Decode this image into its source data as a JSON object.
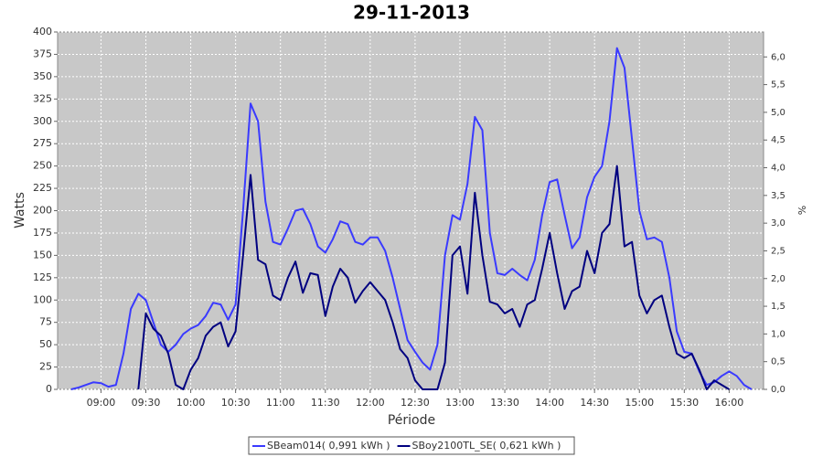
{
  "chart_data": {
    "type": "line",
    "title": "29-11-2013",
    "xlabel": "Période",
    "ylabel": "Watts",
    "y2label": "%",
    "x": [
      "08:40",
      "08:45",
      "08:50",
      "08:55",
      "09:00",
      "09:05",
      "09:10",
      "09:15",
      "09:20",
      "09:25",
      "09:30",
      "09:35",
      "09:40",
      "09:45",
      "09:50",
      "09:55",
      "10:00",
      "10:05",
      "10:10",
      "10:15",
      "10:20",
      "10:25",
      "10:30",
      "10:35",
      "10:40",
      "10:45",
      "10:50",
      "10:55",
      "11:00",
      "11:05",
      "11:10",
      "11:15",
      "11:20",
      "11:25",
      "11:30",
      "11:35",
      "11:40",
      "11:45",
      "11:50",
      "11:55",
      "12:00",
      "12:05",
      "12:10",
      "12:15",
      "12:20",
      "12:25",
      "12:30",
      "12:35",
      "12:40",
      "12:45",
      "12:50",
      "12:55",
      "13:00",
      "13:05",
      "13:10",
      "13:15",
      "13:20",
      "13:25",
      "13:30",
      "13:35",
      "13:40",
      "13:45",
      "13:50",
      "13:55",
      "14:00",
      "14:05",
      "14:10",
      "14:15",
      "14:20",
      "14:25",
      "14:30",
      "14:35",
      "14:40",
      "14:45",
      "14:50",
      "14:55",
      "15:00",
      "15:05",
      "15:10",
      "15:15",
      "15:20",
      "15:25",
      "15:30",
      "15:35",
      "15:40",
      "15:45",
      "15:50",
      "15:55",
      "16:00",
      "16:05",
      "16:10",
      "16:15"
    ],
    "series": [
      {
        "name": "SBeam014( 0,991 kWh )",
        "color": "#3a3aff",
        "values": [
          0,
          2,
          5,
          8,
          7,
          3,
          5,
          40,
          90,
          107,
          100,
          75,
          50,
          42,
          50,
          62,
          68,
          72,
          82,
          97,
          95,
          78,
          95,
          200,
          320,
          300,
          210,
          165,
          162,
          180,
          200,
          202,
          185,
          160,
          153,
          168,
          188,
          185,
          165,
          162,
          170,
          170,
          155,
          125,
          90,
          55,
          42,
          30,
          22,
          50,
          150,
          195,
          190,
          230,
          305,
          290,
          175,
          130,
          128,
          135,
          128,
          122,
          145,
          195,
          232,
          235,
          195,
          158,
          170,
          215,
          238,
          250,
          300,
          382,
          360,
          280,
          200,
          168,
          170,
          165,
          125,
          65,
          42,
          40,
          20,
          5,
          8,
          15,
          20,
          15,
          5,
          0
        ]
      },
      {
        "name": "SBoy2100TL_SE( 0,621 kWh )",
        "color": "#000080",
        "values": [
          null,
          null,
          null,
          null,
          null,
          null,
          null,
          null,
          null,
          0,
          85,
          68,
          60,
          40,
          5,
          0,
          22,
          35,
          60,
          70,
          75,
          48,
          65,
          150,
          240,
          145,
          140,
          105,
          100,
          125,
          143,
          108,
          130,
          128,
          82,
          115,
          135,
          125,
          97,
          110,
          120,
          110,
          100,
          75,
          45,
          35,
          10,
          0,
          0,
          0,
          30,
          150,
          160,
          107,
          220,
          150,
          98,
          95,
          85,
          90,
          70,
          95,
          100,
          135,
          175,
          130,
          90,
          110,
          115,
          155,
          130,
          175,
          185,
          250,
          160,
          165,
          105,
          85,
          100,
          105,
          70,
          40,
          35,
          40,
          22,
          0,
          10,
          5,
          0,
          null,
          null,
          null
        ]
      }
    ],
    "xlim": [
      "08:31",
      "16:23"
    ],
    "xticks": [
      "09:00",
      "09:30",
      "10:00",
      "10:30",
      "11:00",
      "11:30",
      "12:00",
      "12:30",
      "13:00",
      "13:30",
      "14:00",
      "14:30",
      "15:00",
      "15:30",
      "16:00"
    ],
    "ylim": [
      0,
      400
    ],
    "yticks": [
      0,
      25,
      50,
      75,
      100,
      125,
      150,
      175,
      200,
      225,
      250,
      275,
      300,
      325,
      350,
      375,
      400
    ],
    "y2lim": [
      0,
      6.45
    ],
    "y2ticks": [
      {
        "value": 0,
        "label": "0,0"
      },
      {
        "value": 0.5,
        "label": "0,5"
      },
      {
        "value": 1,
        "label": "1,0"
      },
      {
        "value": 1.5,
        "label": "1,5"
      },
      {
        "value": 2,
        "label": "2,0"
      },
      {
        "value": 2.5,
        "label": "2,5"
      },
      {
        "value": 3,
        "label": "3,0"
      },
      {
        "value": 3.5,
        "label": "3,5"
      },
      {
        "value": 4,
        "label": "4,0"
      },
      {
        "value": 4.5,
        "label": "4,5"
      },
      {
        "value": 5,
        "label": "5,0"
      },
      {
        "value": 5.5,
        "label": "5,5"
      },
      {
        "value": 6,
        "label": "6,0"
      }
    ],
    "grid": true,
    "legend": "bottom"
  }
}
